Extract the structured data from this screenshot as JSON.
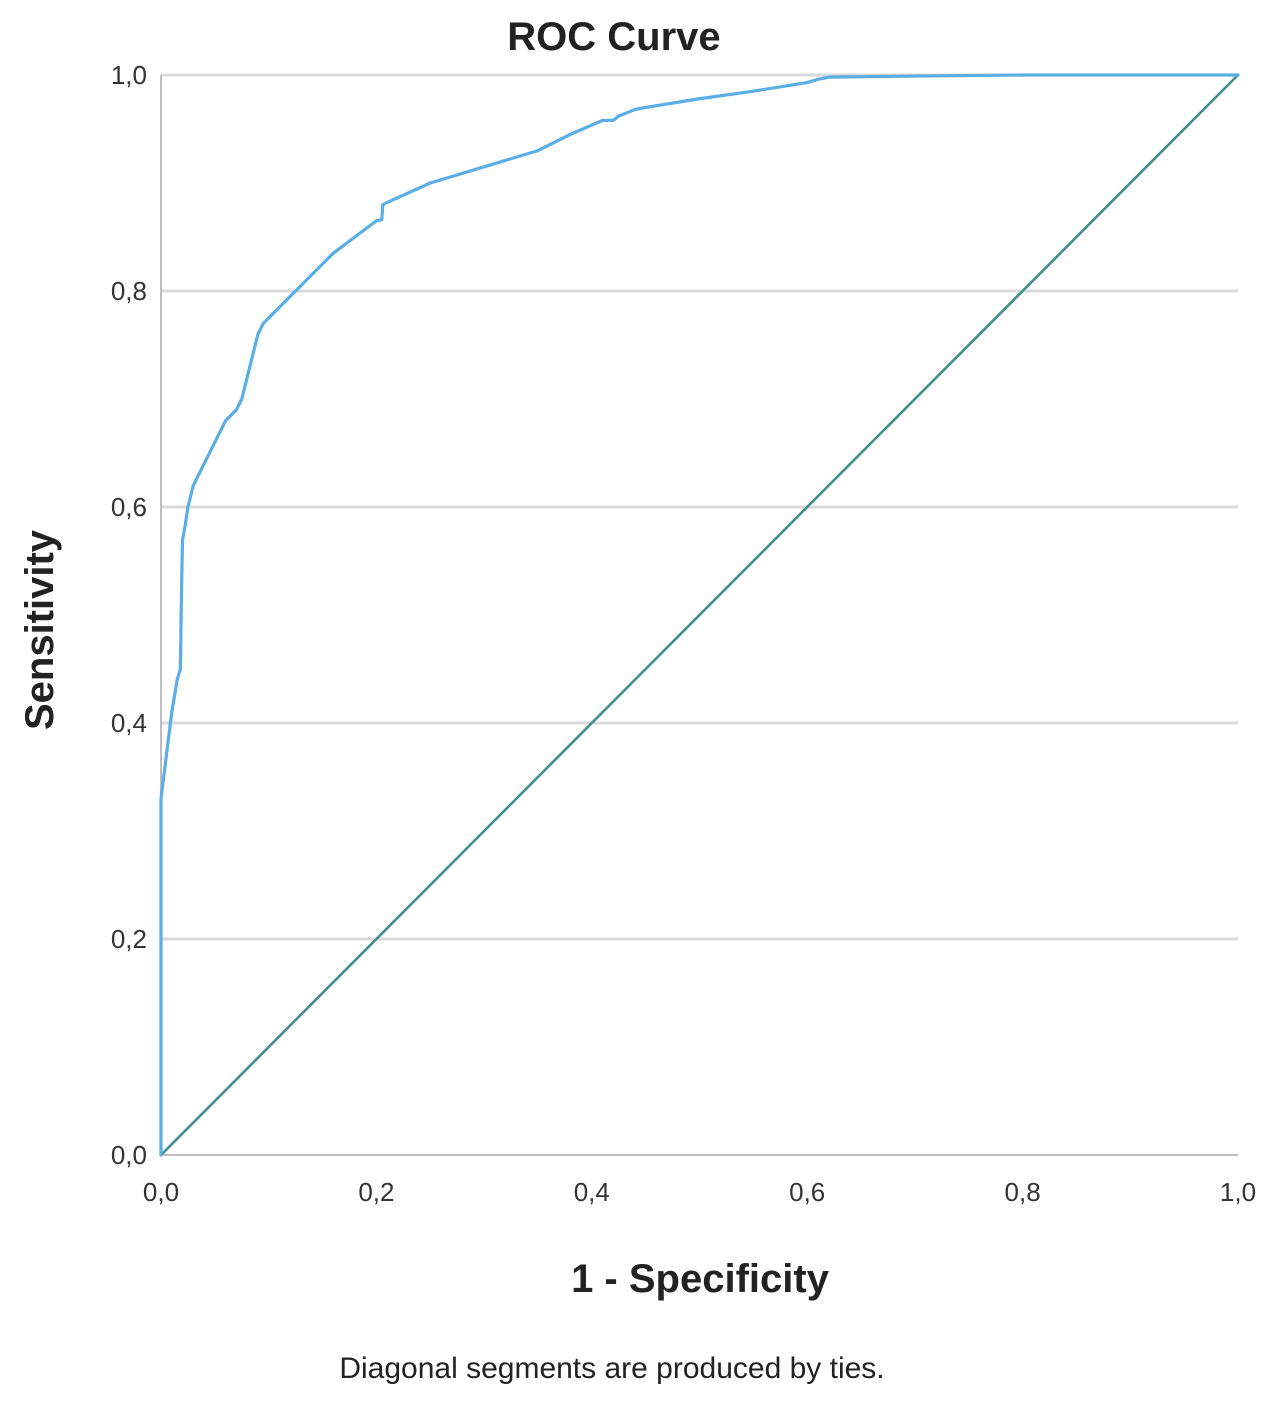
{
  "chart_data": {
    "type": "line",
    "title": "ROC Curve",
    "xlabel": "1 - Specificity",
    "ylabel": "Sensitivity",
    "footnote": "Diagonal segments are produced by ties.",
    "xlim": [
      0,
      1
    ],
    "ylim": [
      0,
      1
    ],
    "x_ticks": [
      "0,0",
      "0,2",
      "0,4",
      "0,6",
      "0,8",
      "1,0"
    ],
    "y_ticks": [
      "0,0",
      "0,2",
      "0,4",
      "0,6",
      "0,8",
      "1,0"
    ],
    "grid": "horizontal",
    "colors": {
      "roc_curve": "#5aaee6",
      "reference_line": "#3f8f8a",
      "grid": "#d9d9d9",
      "axis": "#bdbdbd"
    },
    "series": [
      {
        "x": [
          0.0,
          0.0,
          0.0,
          0.005,
          0.01,
          0.015,
          0.018,
          0.019,
          0.02,
          0.022,
          0.025,
          0.03,
          0.035,
          0.04,
          0.05,
          0.06,
          0.07,
          0.075,
          0.08,
          0.085,
          0.09,
          0.095,
          0.1,
          0.12,
          0.14,
          0.16,
          0.18,
          0.2,
          0.205,
          0.206,
          0.21,
          0.25,
          0.3,
          0.35,
          0.38,
          0.41,
          0.42,
          0.425,
          0.44,
          0.45,
          0.5,
          0.55,
          0.6,
          0.61,
          0.62,
          0.7,
          0.8,
          0.9,
          1.0
        ],
        "y": [
          0.0,
          0.2,
          0.33,
          0.37,
          0.41,
          0.44,
          0.45,
          0.52,
          0.57,
          0.58,
          0.6,
          0.62,
          0.63,
          0.64,
          0.66,
          0.68,
          0.69,
          0.7,
          0.72,
          0.74,
          0.76,
          0.77,
          0.775,
          0.795,
          0.815,
          0.835,
          0.85,
          0.865,
          0.866,
          0.88,
          0.882,
          0.9,
          0.915,
          0.93,
          0.945,
          0.958,
          0.958,
          0.962,
          0.968,
          0.97,
          0.978,
          0.985,
          0.993,
          0.996,
          0.998,
          0.999,
          1.0,
          1.0,
          1.0
        ]
      },
      {
        "x": [
          0,
          1
        ],
        "y": [
          0,
          1
        ]
      }
    ]
  }
}
